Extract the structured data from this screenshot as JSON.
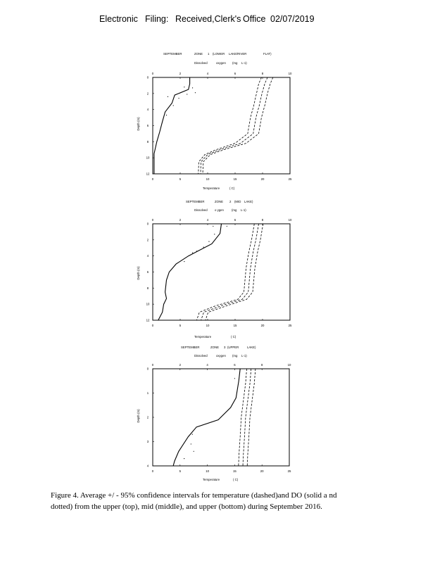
{
  "header": {
    "parts": [
      "Electronic",
      "Filing:",
      "Received,Clerk's",
      "Office",
      "02/07/2019"
    ]
  },
  "figures": [
    {
      "title_parts": [
        "SEPTEMBER",
        "ZONE",
        "1",
        "(LOWER",
        "LAKE/RIVER",
        "FLAT)"
      ],
      "do_axis_label_parts": [
        "Dissolved",
        "oxygen",
        "(mg",
        "L-1)"
      ],
      "temp_axis_label_parts": [
        "Temperature",
        "( C)"
      ],
      "y_axis_label": "Depth (m)",
      "do_ticks": [
        "0",
        "2",
        "4",
        "6",
        "8",
        "10"
      ],
      "temp_ticks": [
        "0",
        "5",
        "10",
        "15",
        "20",
        "25"
      ],
      "depth_ticks": [
        "0",
        "2",
        "4",
        "6",
        "8",
        "10",
        "12"
      ]
    },
    {
      "title_parts": [
        "SEPTEMBER",
        "ZONE",
        "2",
        "(MID",
        "LAKE)"
      ],
      "do_axis_label_parts": [
        "Dissolved",
        "o ygen",
        "(mg",
        "L-1)"
      ],
      "temp_axis_label_parts": [
        "Temperature",
        "( C)"
      ],
      "y_axis_label": "Depth (m)",
      "do_ticks": [
        "0",
        "2",
        "4",
        "6",
        "8",
        "10"
      ],
      "temp_ticks": [
        "0",
        "5",
        "10",
        "15",
        "20",
        "25"
      ],
      "depth_ticks": [
        "0",
        "2",
        "4",
        "6",
        "8",
        "10",
        "12"
      ]
    },
    {
      "title_parts": [
        "SEPTEMBER",
        "ZONE",
        "3",
        "(UPPER",
        "LAKE)"
      ],
      "do_axis_label_parts": [
        "Dissolved",
        "oxygen",
        "(mg",
        "L-1)"
      ],
      "temp_axis_label_parts": [
        "Temperature",
        "( C)"
      ],
      "y_axis_label": "Depth (m)",
      "do_ticks": [
        "0",
        "2",
        "4",
        "6",
        "8",
        "10"
      ],
      "temp_ticks": [
        "0",
        "5",
        "10",
        "15",
        "20",
        "25"
      ],
      "depth_ticks": [
        "0",
        "1",
        "2",
        "3",
        "4"
      ]
    }
  ],
  "caption": {
    "line1": "Figure   4. Average    +/ - 95%  confidence    intervals  for  temperature     (dashed)and     DO  (solid  a nd",
    "line2": "dotted)  from  the  upper  (top),  mid  (middle),    and  upper  (bottom)   during  September    2016."
  },
  "chart_data": [
    {
      "type": "line",
      "title": "SEPTEMBER ZONE 1 (LOWER LAKE/RIVER FLAT)",
      "xlabel": "Temperature ( C)",
      "x2label": "Dissolved oxygen (mg L-1)",
      "ylabel": "Depth (m)",
      "xlim": [
        0,
        25
      ],
      "x2lim": [
        0,
        10
      ],
      "ylim": [
        12,
        0
      ],
      "series": [
        {
          "axis": "do",
          "style": "solid",
          "points": [
            [
              2.7,
              0
            ],
            [
              2.7,
              0.8
            ],
            [
              2.6,
              1.5
            ],
            [
              1.6,
              2.2
            ],
            [
              1.4,
              3.2
            ],
            [
              0.9,
              4.3
            ],
            [
              0.7,
              5.5
            ],
            [
              0.5,
              6.8
            ],
            [
              0.3,
              8.0
            ],
            [
              0.1,
              9.5
            ],
            [
              0.1,
              11.5
            ],
            [
              0.1,
              12
            ]
          ]
        },
        {
          "axis": "do",
          "style": "dotted",
          "points": [
            [
              2.3,
              1.2
            ],
            [
              2.9,
              1.3
            ],
            [
              3.1,
              1.9
            ],
            [
              2.5,
              2.1
            ],
            [
              1.1,
              2.4
            ],
            [
              1.9,
              2.6
            ],
            [
              1.5,
              3.5
            ],
            [
              1.0,
              4.7
            ]
          ]
        },
        {
          "axis": "temp",
          "style": "dashed",
          "points": [
            [
              19.8,
              0
            ],
            [
              19.3,
              0.8
            ],
            [
              18.9,
              2.0
            ],
            [
              18.4,
              3.5
            ],
            [
              17.8,
              5.0
            ],
            [
              17.3,
              7.0
            ],
            [
              15.0,
              8.2
            ],
            [
              11.5,
              9.0
            ],
            [
              9.5,
              9.6
            ],
            [
              8.4,
              10.5
            ],
            [
              8.3,
              12
            ]
          ]
        },
        {
          "axis": "temp",
          "style": "dashed",
          "points": [
            [
              20.9,
              0
            ],
            [
              20.4,
              0.8
            ],
            [
              19.9,
              2.0
            ],
            [
              19.4,
              3.5
            ],
            [
              18.8,
              5.0
            ],
            [
              18.3,
              7.0
            ],
            [
              16.0,
              8.2
            ],
            [
              12.2,
              9.0
            ],
            [
              10.0,
              9.6
            ],
            [
              8.8,
              10.5
            ],
            [
              8.7,
              12
            ]
          ]
        },
        {
          "axis": "temp",
          "style": "dashed",
          "points": [
            [
              21.9,
              0
            ],
            [
              21.4,
              0.8
            ],
            [
              20.9,
              2.0
            ],
            [
              20.4,
              3.5
            ],
            [
              19.8,
              5.0
            ],
            [
              19.3,
              7.0
            ],
            [
              17.0,
              8.2
            ],
            [
              12.9,
              9.0
            ],
            [
              10.5,
              9.6
            ],
            [
              9.2,
              10.5
            ],
            [
              9.1,
              12
            ]
          ]
        }
      ]
    },
    {
      "type": "line",
      "title": "SEPTEMBER ZONE 2 (MID LAKE)",
      "xlabel": "Temperature ( C)",
      "x2label": "Dissolved o ygen (mg L-1)",
      "ylabel": "Depth (m)",
      "xlim": [
        0,
        25
      ],
      "x2lim": [
        0,
        10
      ],
      "ylim": [
        12,
        0
      ],
      "series": [
        {
          "axis": "do",
          "style": "solid",
          "points": [
            [
              5.0,
              0
            ],
            [
              4.9,
              1.2
            ],
            [
              4.3,
              2.5
            ],
            [
              2.6,
              4.0
            ],
            [
              1.7,
              5.0
            ],
            [
              1.2,
              6.0
            ],
            [
              1.0,
              7.0
            ],
            [
              0.9,
              8.5
            ],
            [
              1.0,
              9.3
            ],
            [
              0.8,
              10.0
            ],
            [
              0.7,
              11.0
            ],
            [
              0.4,
              12
            ]
          ]
        },
        {
          "axis": "do",
          "style": "dotted",
          "points": [
            [
              4.4,
              0.3
            ],
            [
              5.4,
              0.3
            ],
            [
              4.5,
              1.3
            ],
            [
              4.1,
              2.2
            ],
            [
              3.7,
              2.9
            ],
            [
              3.2,
              3.4
            ],
            [
              2.9,
              3.6
            ],
            [
              2.3,
              4.7
            ]
          ]
        },
        {
          "axis": "temp",
          "style": "dashed",
          "points": [
            [
              18.5,
              0
            ],
            [
              18.0,
              2.0
            ],
            [
              17.5,
              3.5
            ],
            [
              17.0,
              5.5
            ],
            [
              16.6,
              8.5
            ],
            [
              15.5,
              9.4
            ],
            [
              11.5,
              10.2
            ],
            [
              8.5,
              11.0
            ],
            [
              8.0,
              12
            ]
          ]
        },
        {
          "axis": "temp",
          "style": "dashed",
          "points": [
            [
              19.3,
              0
            ],
            [
              18.8,
              2.0
            ],
            [
              18.3,
              3.5
            ],
            [
              17.8,
              5.5
            ],
            [
              17.4,
              8.5
            ],
            [
              16.3,
              9.4
            ],
            [
              12.5,
              10.2
            ],
            [
              9.3,
              11.0
            ],
            [
              8.8,
              12
            ]
          ]
        },
        {
          "axis": "temp",
          "style": "dashed",
          "points": [
            [
              20.1,
              0
            ],
            [
              19.6,
              2.0
            ],
            [
              19.1,
              3.5
            ],
            [
              18.6,
              5.5
            ],
            [
              18.2,
              8.5
            ],
            [
              17.1,
              9.4
            ],
            [
              13.5,
              10.2
            ],
            [
              10.1,
              11.0
            ],
            [
              9.6,
              12
            ]
          ]
        }
      ]
    },
    {
      "type": "line",
      "title": "SEPTEMBER ZONE 3 (UPPER LAKE)",
      "xlabel": "Temperature ( C)",
      "x2label": "Dissolved oxygen (mg L-1)",
      "ylabel": "Depth (m)",
      "xlim": [
        0,
        25
      ],
      "x2lim": [
        0,
        10
      ],
      "ylim": [
        4,
        0
      ],
      "series": [
        {
          "axis": "do",
          "style": "solid",
          "points": [
            [
              6.4,
              0
            ],
            [
              6.3,
              0.5
            ],
            [
              6.1,
              1.2
            ],
            [
              5.7,
              1.6
            ],
            [
              4.8,
              2.1
            ],
            [
              3.2,
              2.4
            ],
            [
              2.6,
              2.8
            ],
            [
              1.9,
              3.4
            ],
            [
              1.6,
              3.8
            ],
            [
              1.5,
              4
            ]
          ]
        },
        {
          "axis": "do",
          "style": "dotted",
          "points": [
            [
              6.0,
              0.4
            ],
            [
              2.9,
              2.7
            ],
            [
              2.8,
              3.1
            ],
            [
              3.0,
              3.4
            ],
            [
              2.3,
              3.7
            ]
          ]
        },
        {
          "axis": "temp",
          "style": "dashed",
          "points": [
            [
              17.2,
              0
            ],
            [
              17.0,
              0.6
            ],
            [
              16.6,
              1.3
            ],
            [
              16.2,
              2.0
            ],
            [
              16.0,
              2.8
            ],
            [
              15.8,
              3.5
            ],
            [
              15.7,
              4
            ]
          ]
        },
        {
          "axis": "temp",
          "style": "dashed",
          "points": [
            [
              18.0,
              0
            ],
            [
              17.8,
              0.6
            ],
            [
              17.4,
              1.3
            ],
            [
              17.0,
              2.0
            ],
            [
              16.8,
              2.8
            ],
            [
              16.6,
              3.5
            ],
            [
              16.5,
              4
            ]
          ]
        },
        {
          "axis": "temp",
          "style": "dashed",
          "points": [
            [
              18.8,
              0
            ],
            [
              18.6,
              0.6
            ],
            [
              18.2,
              1.3
            ],
            [
              17.8,
              2.0
            ],
            [
              17.6,
              2.8
            ],
            [
              17.4,
              3.5
            ],
            [
              17.3,
              4
            ]
          ]
        }
      ]
    }
  ]
}
